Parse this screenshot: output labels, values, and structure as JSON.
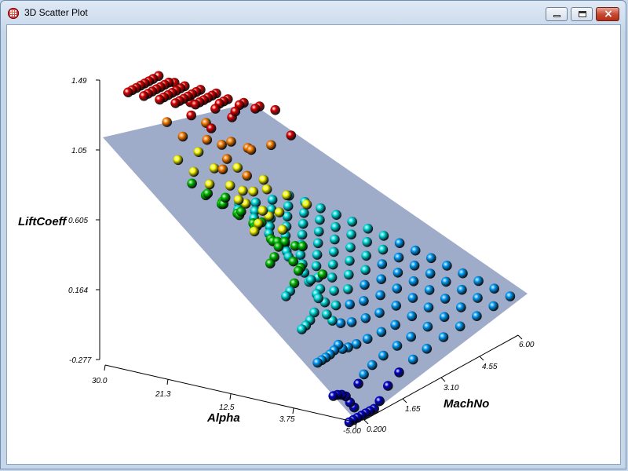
{
  "window": {
    "title": "3D Scatter Plot",
    "icon": "app-grid-icon",
    "controls": {
      "minimize": "minimize-icon",
      "maximize": "maximize-icon",
      "close": "×"
    }
  },
  "chart_data": {
    "type": "scatter",
    "projection": "3d",
    "title": "",
    "axes": {
      "x": {
        "label": "Alpha",
        "ticks": [
          "30.0",
          "21.3",
          "12.5",
          "3.75",
          "-5.00"
        ],
        "range": [
          -5.0,
          30.0
        ]
      },
      "y": {
        "label": "MachNo",
        "ticks": [
          "0.200",
          "1.65",
          "3.10",
          "4.55",
          "6.00"
        ],
        "range": [
          0.2,
          6.0
        ]
      },
      "z": {
        "label": "LiftCoeff",
        "ticks": [
          "-0.277",
          "0.164",
          "0.605",
          "1.05",
          "1.49"
        ],
        "range": [
          -0.277,
          1.49
        ]
      }
    },
    "surface": {
      "description": "fitted plane",
      "color": "#8d9cc0"
    },
    "color_map": [
      "#0000cc",
      "#00a0ff",
      "#00e0e0",
      "#00c000",
      "#ffff00",
      "#ff8000",
      "#dd0000"
    ],
    "points_note": "color encodes LiftCoeff"
  }
}
